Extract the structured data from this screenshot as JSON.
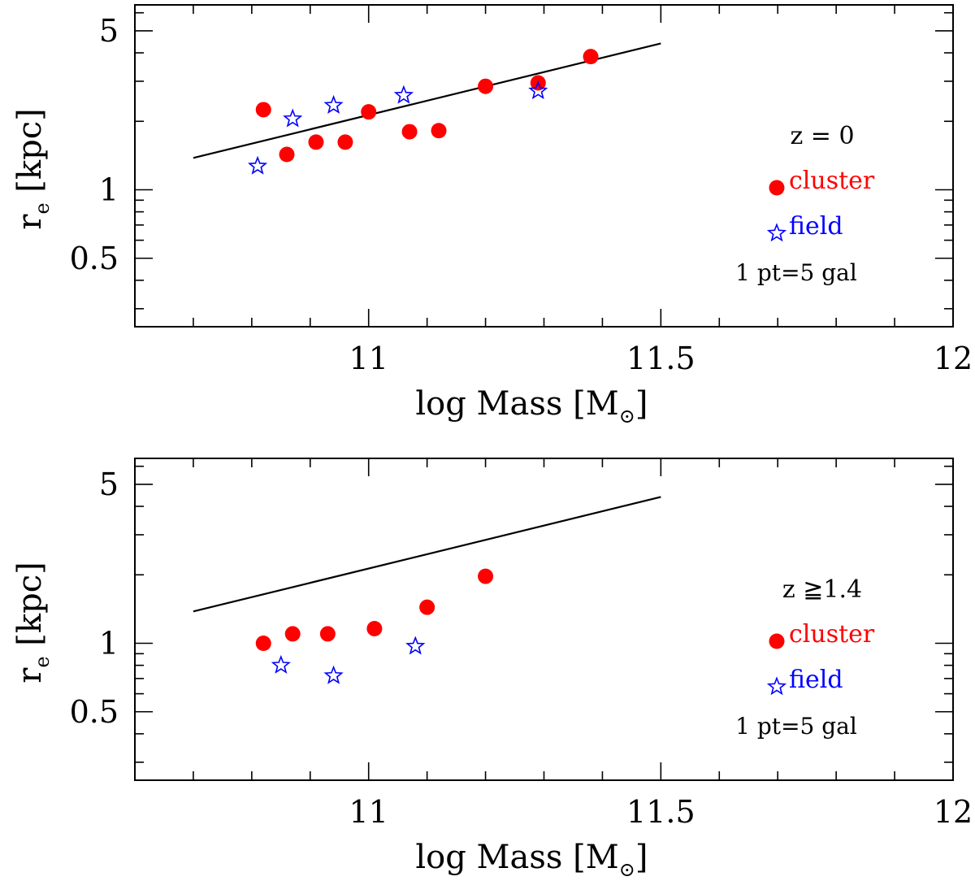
{
  "colors": {
    "cluster": "#ff0000",
    "field": "#0000ff",
    "axis": "#000000",
    "fit": "#000000"
  },
  "chart_data": [
    {
      "type": "scatter",
      "x_scale": "linear",
      "y_scale": "log",
      "xlim": [
        10.6,
        12
      ],
      "ylim": [
        0.25,
        6.5
      ],
      "xlabel": "log Mass [M",
      "xlabel_sub": "⊙",
      "xlabel_close": "]",
      "ylabel": "r",
      "ylabel_sub": "e",
      "ylabel_rest": " [kpc]",
      "x_ticks": [
        11,
        11.5,
        12
      ],
      "x_tick_labels": [
        "11",
        "11.5",
        "12"
      ],
      "y_ticks": [
        0.5,
        1,
        5
      ],
      "y_tick_labels": [
        "0.5",
        "1",
        "5"
      ],
      "fit_line": {
        "x": [
          10.7,
          11.5
        ],
        "y": [
          1.38,
          4.4
        ]
      },
      "annotation_title": "z = 0",
      "legend": {
        "cluster_label": "cluster",
        "field_label": "field",
        "note": "1 pt=5 gal"
      },
      "series": [
        {
          "name": "cluster",
          "marker": "circle",
          "points": [
            [
              10.82,
              2.25
            ],
            [
              10.86,
              1.43
            ],
            [
              10.91,
              1.62
            ],
            [
              10.96,
              1.62
            ],
            [
              11.0,
              2.2
            ],
            [
              11.07,
              1.8
            ],
            [
              11.12,
              1.82
            ],
            [
              11.2,
              2.85
            ],
            [
              11.29,
              2.95
            ],
            [
              11.38,
              3.85
            ]
          ]
        },
        {
          "name": "field",
          "marker": "star",
          "points": [
            [
              10.81,
              1.27
            ],
            [
              10.87,
              2.05
            ],
            [
              10.94,
              2.35
            ],
            [
              11.06,
              2.6
            ],
            [
              11.29,
              2.72
            ]
          ]
        }
      ]
    },
    {
      "type": "scatter",
      "x_scale": "linear",
      "y_scale": "log",
      "xlim": [
        10.6,
        12
      ],
      "ylim": [
        0.25,
        6.5
      ],
      "xlabel": "log Mass [M",
      "xlabel_sub": "⊙",
      "xlabel_close": "]",
      "ylabel": "r",
      "ylabel_sub": "e",
      "ylabel_rest": " [kpc]",
      "x_ticks": [
        11,
        11.5,
        12
      ],
      "x_tick_labels": [
        "11",
        "11.5",
        "12"
      ],
      "y_ticks": [
        0.5,
        1,
        5
      ],
      "y_tick_labels": [
        "0.5",
        "1",
        "5"
      ],
      "fit_line": {
        "x": [
          10.7,
          11.5
        ],
        "y": [
          1.38,
          4.4
        ]
      },
      "annotation_title": "z ≧1.4",
      "legend": {
        "cluster_label": "cluster",
        "field_label": "field",
        "note": "1 pt=5 gal"
      },
      "series": [
        {
          "name": "cluster",
          "marker": "circle",
          "points": [
            [
              10.82,
              1.0
            ],
            [
              10.87,
              1.1
            ],
            [
              10.93,
              1.1
            ],
            [
              11.01,
              1.16
            ],
            [
              11.1,
              1.44
            ],
            [
              11.2,
              1.97
            ]
          ]
        },
        {
          "name": "field",
          "marker": "star",
          "points": [
            [
              10.85,
              0.8
            ],
            [
              10.94,
              0.72
            ],
            [
              11.08,
              0.97
            ]
          ]
        }
      ]
    }
  ]
}
